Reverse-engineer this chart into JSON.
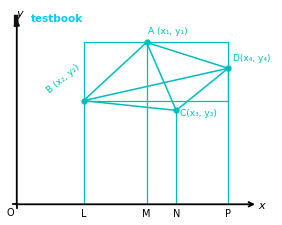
{
  "color": "#00BDBD",
  "bg_color": "#ffffff",
  "title_color": "#00CCEE",
  "title_text": "testbook",
  "bookmark_color": "#333333",
  "points": {
    "A": [
      3.5,
      5.0
    ],
    "B": [
      1.8,
      3.2
    ],
    "C": [
      4.3,
      2.9
    ],
    "D": [
      5.7,
      4.2
    ]
  },
  "axis_color": "#000000",
  "point_labels": {
    "A": "A (x₁, y₁)",
    "B": "B (x₂, y₂)",
    "C": "C(x₃, y₃)",
    "D": "D(x₄, y₄)"
  },
  "xlim": [
    -0.3,
    7.0
  ],
  "ylim": [
    -0.5,
    6.2
  ],
  "figsize": [
    2.82,
    2.26
  ],
  "dpi": 100
}
